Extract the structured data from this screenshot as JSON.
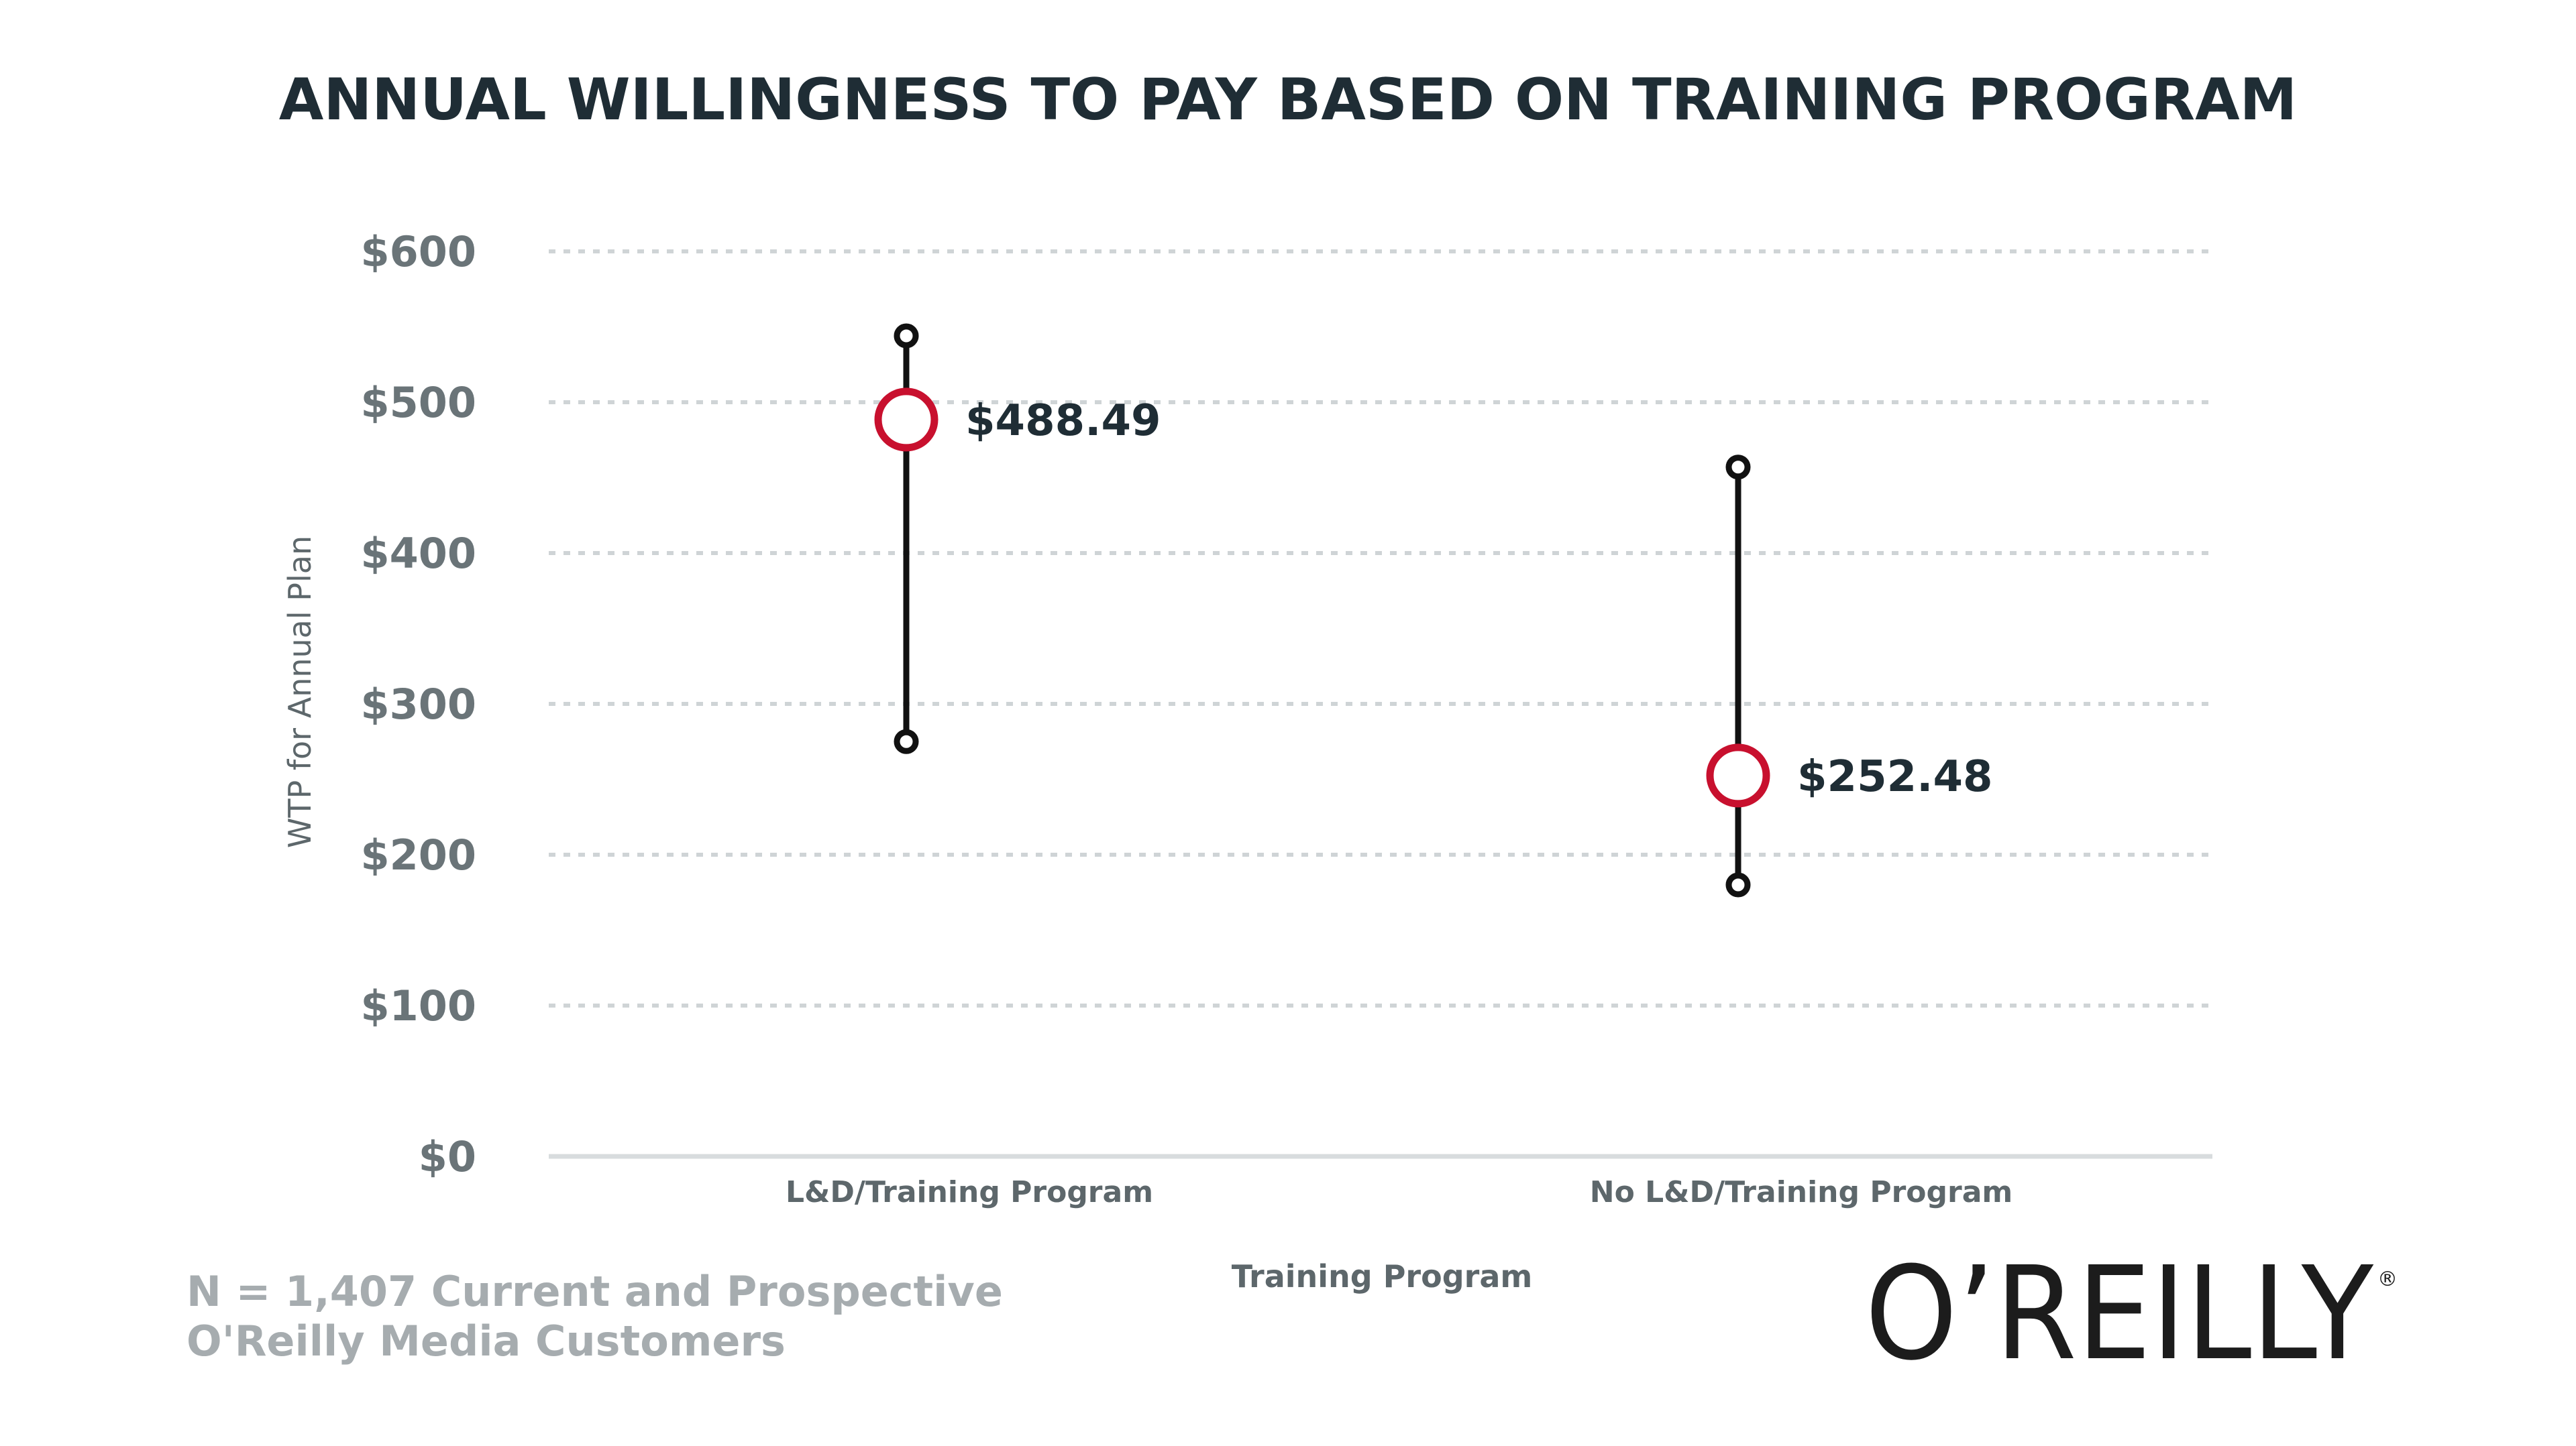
{
  "chart_data": {
    "type": "range",
    "title": "ANNUAL WILLINGNESS TO PAY BASED ON TRAINING PROGRAM",
    "xlabel": "Training Program",
    "ylabel": "WTP for Annual Plan",
    "ylim": [
      0,
      600
    ],
    "yticks": [
      {
        "value": 0,
        "label": "$0"
      },
      {
        "value": 100,
        "label": "$100"
      },
      {
        "value": 200,
        "label": "$200"
      },
      {
        "value": 300,
        "label": "$300"
      },
      {
        "value": 400,
        "label": "$400"
      },
      {
        "value": 500,
        "label": "$500"
      },
      {
        "value": 600,
        "label": "$600"
      }
    ],
    "grid": "dashed horizontal",
    "categories": [
      "L&D/Training Program",
      "No L&D/Training Program"
    ],
    "points": [
      {
        "category": "L&D/Training Program",
        "mean": 488.49,
        "low": 275,
        "high": 544,
        "label": "$488.49"
      },
      {
        "category": "No L&D/Training Program",
        "mean": 252.48,
        "low": 180,
        "high": 457,
        "label": "$252.48"
      }
    ],
    "colors": {
      "marker": "#c8102e",
      "whisker": "#111111",
      "grid": "#cfd4d6",
      "axis": "#d8dcde"
    }
  },
  "footnote": {
    "line1": "N = 1,407 Current and Prospective",
    "line2": "O'Reilly Media Customers"
  },
  "logo": {
    "text": "O’REILLY",
    "reg": "®"
  }
}
